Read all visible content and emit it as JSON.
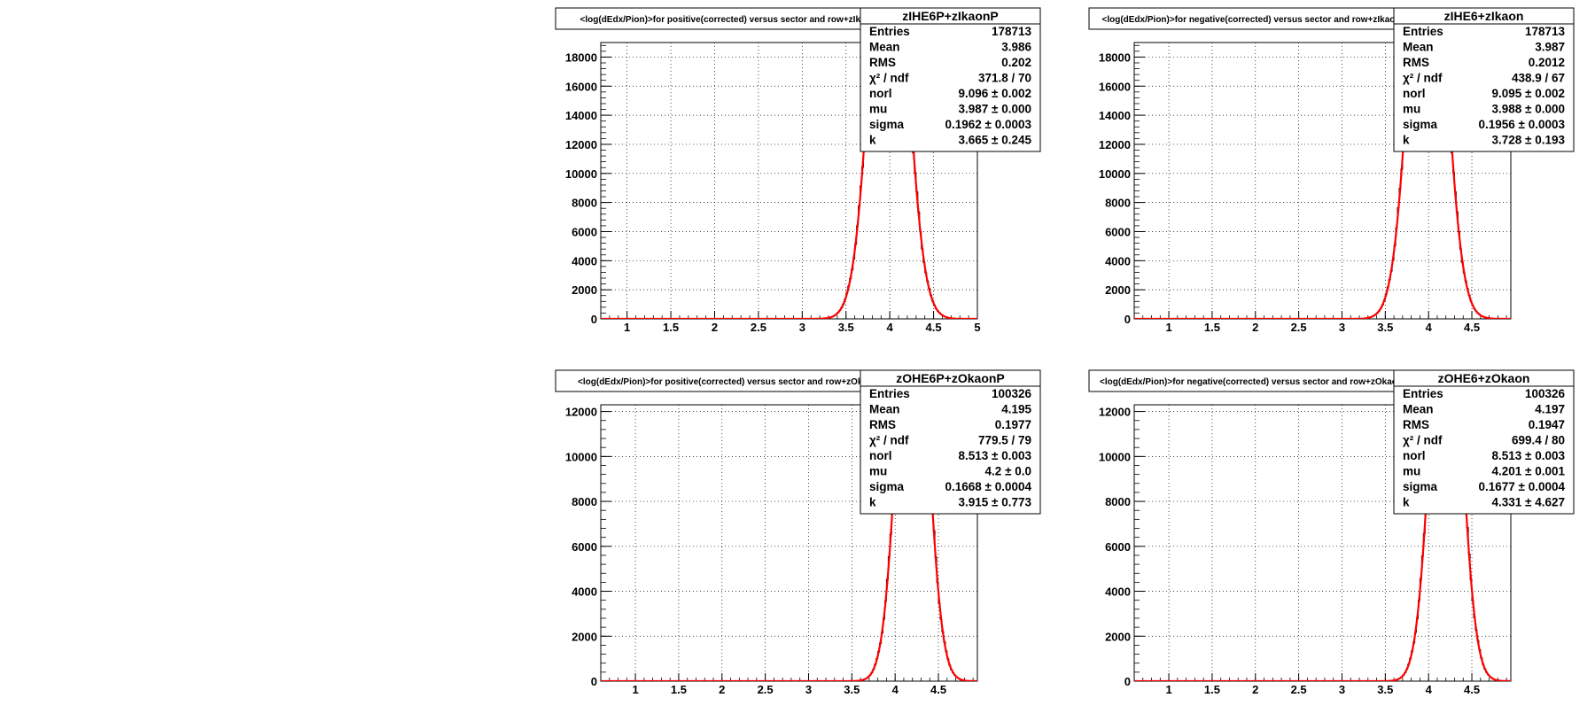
{
  "chart_data": [
    {
      "type": "histogram",
      "title": "<log(dEdx/Pion)>for positive(corrected) versus sector and row+zIkaonP",
      "stats_name": "zIHE6P+zIkaonP",
      "xlim": [
        0.7,
        5.0
      ],
      "ylim": [
        0,
        19000
      ],
      "xticks": [
        "1",
        "1.5",
        "2",
        "2.5",
        "3",
        "3.5",
        "4",
        "4.5",
        "5"
      ],
      "yticks": [
        "0",
        "2000",
        "4000",
        "6000",
        "8000",
        "10000",
        "12000",
        "14000",
        "16000",
        "18000"
      ],
      "grid": true,
      "fit": {
        "amplitude": 33000,
        "mu": 3.987,
        "sigma": 0.1962
      },
      "stats": [
        {
          "label": "Entries",
          "value": "178713"
        },
        {
          "label": "Mean",
          "value": "3.986"
        },
        {
          "label": "RMS",
          "value": "0.202"
        },
        {
          "label": "χ² / ndf",
          "value": "371.8 / 70"
        },
        {
          "label": "norl",
          "value": "9.096 ± 0.002"
        },
        {
          "label": "mu",
          "value": "3.987 ± 0.000"
        },
        {
          "label": "sigma",
          "value": "0.1962 ± 0.0003"
        },
        {
          "label": "k",
          "value": "3.665 ± 0.245"
        }
      ]
    },
    {
      "type": "histogram",
      "title": "<log(dEdx/Pion)>for negative(corrected) versus sector and row+zIkaon",
      "stats_name": "zIHE6+zIkaon",
      "xlim": [
        0.6,
        4.95
      ],
      "ylim": [
        0,
        19000
      ],
      "xticks": [
        "1",
        "1.5",
        "2",
        "2.5",
        "3",
        "3.5",
        "4",
        "4.5"
      ],
      "yticks": [
        "0",
        "2000",
        "4000",
        "6000",
        "8000",
        "10000",
        "12000",
        "14000",
        "16000",
        "18000"
      ],
      "grid": true,
      "fit": {
        "amplitude": 33000,
        "mu": 3.988,
        "sigma": 0.1956
      },
      "stats": [
        {
          "label": "Entries",
          "value": "178713"
        },
        {
          "label": "Mean",
          "value": "3.987"
        },
        {
          "label": "RMS",
          "value": "0.2012"
        },
        {
          "label": "χ² / ndf",
          "value": "438.9 / 67"
        },
        {
          "label": "norl",
          "value": "9.095 ± 0.002"
        },
        {
          "label": "mu",
          "value": "3.988 ± 0.000"
        },
        {
          "label": "sigma",
          "value": "0.1956 ± 0.0003"
        },
        {
          "label": "k",
          "value": "3.728 ± 0.193"
        }
      ]
    },
    {
      "type": "histogram",
      "title": "<log(dEdx/Pion)>for positive(corrected) versus sector and row+zOkaonP",
      "stats_name": "zOHE6P+zOkaonP",
      "xlim": [
        0.6,
        4.95
      ],
      "ylim": [
        0,
        12300
      ],
      "xticks": [
        "1",
        "1.5",
        "2",
        "2.5",
        "3",
        "3.5",
        "4",
        "4.5"
      ],
      "yticks": [
        "0",
        "2000",
        "4000",
        "6000",
        "8000",
        "10000",
        "12000"
      ],
      "grid": true,
      "fit": {
        "amplitude": 20000,
        "mu": 4.2,
        "sigma": 0.1668
      },
      "stats": [
        {
          "label": "Entries",
          "value": "100326"
        },
        {
          "label": "Mean",
          "value": "4.195"
        },
        {
          "label": "RMS",
          "value": "0.1977"
        },
        {
          "label": "χ² / ndf",
          "value": "779.5 / 79"
        },
        {
          "label": "norl",
          "value": "8.513 ± 0.003"
        },
        {
          "label": "mu",
          "value": "4.2 ± 0.0"
        },
        {
          "label": "sigma",
          "value": "0.1668 ± 0.0004"
        },
        {
          "label": "k",
          "value": "3.915 ± 0.773"
        }
      ]
    },
    {
      "type": "histogram",
      "title": "<log(dEdx/Pion)>for negative(corrected) versus sector and row+zOkaon",
      "stats_name": "zOHE6+zOkaon",
      "xlim": [
        0.6,
        4.95
      ],
      "ylim": [
        0,
        12300
      ],
      "xticks": [
        "1",
        "1.5",
        "2",
        "2.5",
        "3",
        "3.5",
        "4",
        "4.5"
      ],
      "yticks": [
        "0",
        "2000",
        "4000",
        "6000",
        "8000",
        "10000",
        "12000"
      ],
      "grid": true,
      "fit": {
        "amplitude": 20000,
        "mu": 4.201,
        "sigma": 0.1677
      },
      "stats": [
        {
          "label": "Entries",
          "value": "100326"
        },
        {
          "label": "Mean",
          "value": "4.197"
        },
        {
          "label": "RMS",
          "value": "0.1947"
        },
        {
          "label": "χ² / ndf",
          "value": "699.4 / 80"
        },
        {
          "label": "norl",
          "value": "8.513 ± 0.003"
        },
        {
          "label": "mu",
          "value": "4.201 ± 0.001"
        },
        {
          "label": "sigma",
          "value": "0.1677 ± 0.0004"
        },
        {
          "label": "k",
          "value": "4.331 ± 4.627"
        }
      ]
    }
  ],
  "colors": {
    "fit": "#ff0000",
    "hist": "#000000",
    "grid": "#000000",
    "frame": "#000000"
  }
}
